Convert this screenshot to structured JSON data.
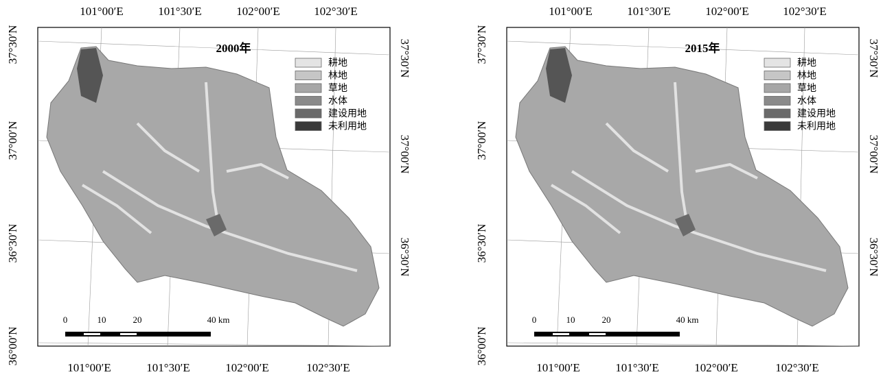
{
  "panels": [
    {
      "title": "2000年",
      "legend": [
        {
          "label": "耕地",
          "color": "#e4e4e4"
        },
        {
          "label": "林地",
          "color": "#c6c6c6"
        },
        {
          "label": "草地",
          "color": "#a6a6a6"
        },
        {
          "label": "水体",
          "color": "#8a8a8a"
        },
        {
          "label": "建设用地",
          "color": "#6a6a6a"
        },
        {
          "label": "未利用地",
          "color": "#3a3a3a"
        }
      ],
      "top_labels": [
        "101°00′E",
        "101°30′E",
        "102°00′E",
        "102°30′E"
      ],
      "bottom_labels": [
        "101°00′E",
        "101°30′E",
        "102°00′E",
        "102°30′E"
      ],
      "left_labels": [
        "37°30′N",
        "37°00′N",
        "36°30′N",
        "36°00′N"
      ],
      "right_labels": [
        "37°30′N",
        "37°00′N",
        "36°30′N"
      ],
      "scale_labels": [
        "0",
        "10",
        "20",
        "40 km"
      ]
    },
    {
      "title": "2015年",
      "legend": [
        {
          "label": "耕地",
          "color": "#e4e4e4"
        },
        {
          "label": "林地",
          "color": "#c6c6c6"
        },
        {
          "label": "草地",
          "color": "#a6a6a6"
        },
        {
          "label": "水体",
          "color": "#8a8a8a"
        },
        {
          "label": "建设用地",
          "color": "#6a6a6a"
        },
        {
          "label": "未利用地",
          "color": "#3a3a3a"
        }
      ],
      "top_labels": [
        "101°00′E",
        "101°30′E",
        "102°00′E",
        "102°30′E"
      ],
      "bottom_labels": [
        "101°00′E",
        "101°30′E",
        "102°00′E",
        "102°30′E"
      ],
      "left_labels": [
        "37°30′N",
        "37°00′N",
        "36°30′N",
        "36°00′N"
      ],
      "right_labels": [
        "37°30′N",
        "37°00′N",
        "36°30′N"
      ],
      "scale_labels": [
        "0",
        "10",
        "20",
        "40 km"
      ]
    }
  ]
}
